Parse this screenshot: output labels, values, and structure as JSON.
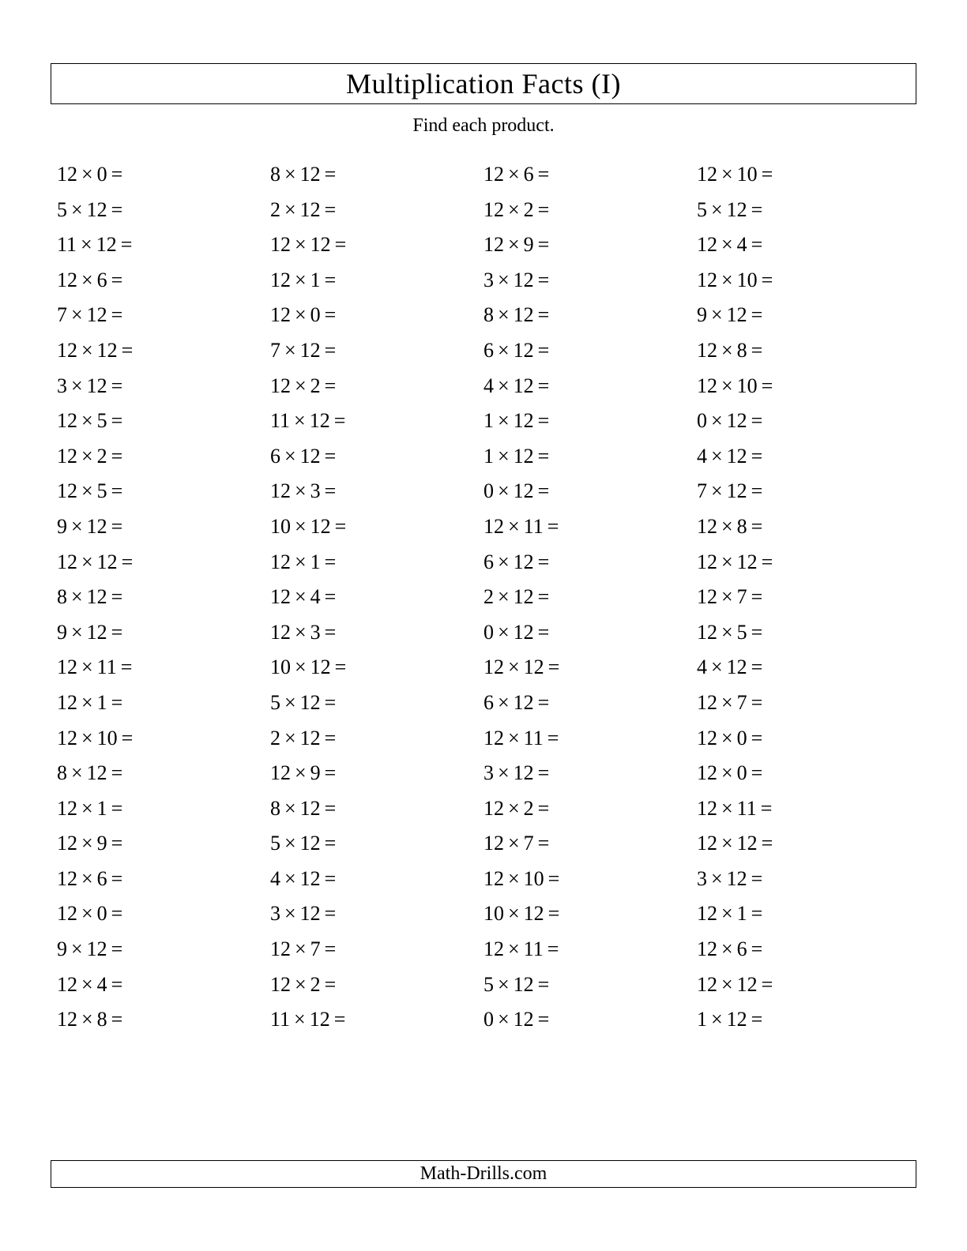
{
  "title": "Multiplication Facts (I)",
  "instruction": "Find each product.",
  "footer": "Math-Drills.com",
  "style": {
    "background_color": "#ffffff",
    "text_color": "#000000",
    "title_fontsize": 36,
    "instruction_fontsize": 24,
    "problem_fontsize": 26,
    "line_height": 44.6,
    "border_color": "#000000",
    "columns": 4,
    "rows": 25,
    "multiply_symbol": "×",
    "equals_symbol": "="
  },
  "problems": {
    "col1": [
      {
        "a": 12,
        "b": 0
      },
      {
        "a": 5,
        "b": 12
      },
      {
        "a": 11,
        "b": 12
      },
      {
        "a": 12,
        "b": 6
      },
      {
        "a": 7,
        "b": 12
      },
      {
        "a": 12,
        "b": 12
      },
      {
        "a": 3,
        "b": 12
      },
      {
        "a": 12,
        "b": 5
      },
      {
        "a": 12,
        "b": 2
      },
      {
        "a": 12,
        "b": 5
      },
      {
        "a": 9,
        "b": 12
      },
      {
        "a": 12,
        "b": 12
      },
      {
        "a": 8,
        "b": 12
      },
      {
        "a": 9,
        "b": 12
      },
      {
        "a": 12,
        "b": 11
      },
      {
        "a": 12,
        "b": 1
      },
      {
        "a": 12,
        "b": 10
      },
      {
        "a": 8,
        "b": 12
      },
      {
        "a": 12,
        "b": 1
      },
      {
        "a": 12,
        "b": 9
      },
      {
        "a": 12,
        "b": 6
      },
      {
        "a": 12,
        "b": 0
      },
      {
        "a": 9,
        "b": 12
      },
      {
        "a": 12,
        "b": 4
      },
      {
        "a": 12,
        "b": 8
      }
    ],
    "col2": [
      {
        "a": 8,
        "b": 12
      },
      {
        "a": 2,
        "b": 12
      },
      {
        "a": 12,
        "b": 12
      },
      {
        "a": 12,
        "b": 1
      },
      {
        "a": 12,
        "b": 0
      },
      {
        "a": 7,
        "b": 12
      },
      {
        "a": 12,
        "b": 2
      },
      {
        "a": 11,
        "b": 12
      },
      {
        "a": 6,
        "b": 12
      },
      {
        "a": 12,
        "b": 3
      },
      {
        "a": 10,
        "b": 12
      },
      {
        "a": 12,
        "b": 1
      },
      {
        "a": 12,
        "b": 4
      },
      {
        "a": 12,
        "b": 3
      },
      {
        "a": 10,
        "b": 12
      },
      {
        "a": 5,
        "b": 12
      },
      {
        "a": 2,
        "b": 12
      },
      {
        "a": 12,
        "b": 9
      },
      {
        "a": 8,
        "b": 12
      },
      {
        "a": 5,
        "b": 12
      },
      {
        "a": 4,
        "b": 12
      },
      {
        "a": 3,
        "b": 12
      },
      {
        "a": 12,
        "b": 7
      },
      {
        "a": 12,
        "b": 2
      },
      {
        "a": 11,
        "b": 12
      }
    ],
    "col3": [
      {
        "a": 12,
        "b": 6
      },
      {
        "a": 12,
        "b": 2
      },
      {
        "a": 12,
        "b": 9
      },
      {
        "a": 3,
        "b": 12
      },
      {
        "a": 8,
        "b": 12
      },
      {
        "a": 6,
        "b": 12
      },
      {
        "a": 4,
        "b": 12
      },
      {
        "a": 1,
        "b": 12
      },
      {
        "a": 1,
        "b": 12
      },
      {
        "a": 0,
        "b": 12
      },
      {
        "a": 12,
        "b": 11
      },
      {
        "a": 6,
        "b": 12
      },
      {
        "a": 2,
        "b": 12
      },
      {
        "a": 0,
        "b": 12
      },
      {
        "a": 12,
        "b": 12
      },
      {
        "a": 6,
        "b": 12
      },
      {
        "a": 12,
        "b": 11
      },
      {
        "a": 3,
        "b": 12
      },
      {
        "a": 12,
        "b": 2
      },
      {
        "a": 12,
        "b": 7
      },
      {
        "a": 12,
        "b": 10
      },
      {
        "a": 10,
        "b": 12
      },
      {
        "a": 12,
        "b": 11
      },
      {
        "a": 5,
        "b": 12
      },
      {
        "a": 0,
        "b": 12
      }
    ],
    "col4": [
      {
        "a": 12,
        "b": 10
      },
      {
        "a": 5,
        "b": 12
      },
      {
        "a": 12,
        "b": 4
      },
      {
        "a": 12,
        "b": 10
      },
      {
        "a": 9,
        "b": 12
      },
      {
        "a": 12,
        "b": 8
      },
      {
        "a": 12,
        "b": 10
      },
      {
        "a": 0,
        "b": 12
      },
      {
        "a": 4,
        "b": 12
      },
      {
        "a": 7,
        "b": 12
      },
      {
        "a": 12,
        "b": 8
      },
      {
        "a": 12,
        "b": 12
      },
      {
        "a": 12,
        "b": 7
      },
      {
        "a": 12,
        "b": 5
      },
      {
        "a": 4,
        "b": 12
      },
      {
        "a": 12,
        "b": 7
      },
      {
        "a": 12,
        "b": 0
      },
      {
        "a": 12,
        "b": 0
      },
      {
        "a": 12,
        "b": 11
      },
      {
        "a": 12,
        "b": 12
      },
      {
        "a": 3,
        "b": 12
      },
      {
        "a": 12,
        "b": 1
      },
      {
        "a": 12,
        "b": 6
      },
      {
        "a": 12,
        "b": 12
      },
      {
        "a": 1,
        "b": 12
      }
    ]
  }
}
